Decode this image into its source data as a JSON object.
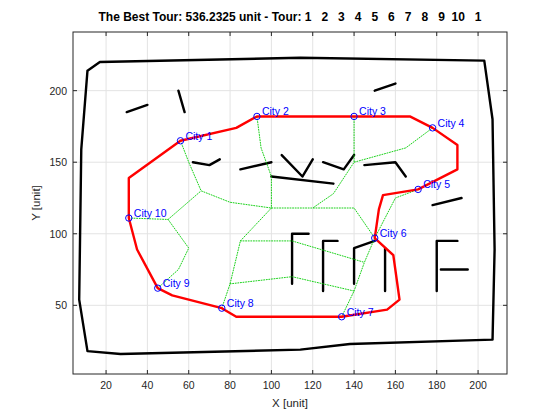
{
  "chart_data": {
    "type": "line",
    "title": "The Best Tour: 536.2325 unit - Tour: 1   2   3   4   5   6   7   8   9  10   1",
    "x_label": "X [unit]",
    "y_label": "Y [unit]",
    "xlim": [
      4,
      214
    ],
    "ylim": [
      2,
      241
    ],
    "xticks": [
      20,
      40,
      60,
      80,
      100,
      120,
      140,
      160,
      180,
      200
    ],
    "yticks": [
      50,
      100,
      150,
      200
    ],
    "grid": true,
    "series": [
      {
        "type": "line",
        "color": "#000000",
        "line_style": "solid",
        "x": [
          11,
          17,
          114,
          203,
          207,
          208,
          207,
          138,
          114,
          27,
          11,
          7,
          8,
          11,
          null,
          62,
          70,
          75,
          null,
          85,
          100,
          null,
          105,
          115,
          120,
          null,
          125,
          135,
          140,
          null,
          145,
          160,
          165,
          null,
          100,
          130,
          null,
          110,
          110,
          118,
          null,
          125,
          125,
          132,
          null,
          140,
          140,
          150,
          null,
          155,
          155,
          null,
          180,
          180,
          190,
          null,
          182,
          195,
          null,
          178,
          192,
          null,
          30,
          40,
          null,
          55,
          58,
          null,
          150,
          160
        ],
        "values": [
          214,
          220,
          223,
          221,
          180,
          89,
          26,
          23,
          19,
          16,
          18,
          54,
          159,
          214,
          null,
          150,
          148,
          152,
          null,
          145,
          150,
          null,
          155,
          140,
          152,
          null,
          150,
          145,
          155,
          null,
          148,
          150,
          140,
          null,
          140,
          135,
          null,
          65,
          100,
          100,
          null,
          60,
          95,
          95,
          null,
          65,
          90,
          95,
          null,
          60,
          90,
          null,
          60,
          95,
          95,
          null,
          75,
          75,
          null,
          120,
          125,
          null,
          185,
          190,
          null,
          200,
          185,
          null,
          200,
          205
        ]
      },
      {
        "type": "line",
        "color": "#00cc00",
        "line_style": "dotted",
        "x": [
          56,
          60,
          66,
          80,
          100,
          120,
          140,
          150,
          null,
          93,
          95,
          100,
          100,
          null,
          140,
          140,
          130,
          120,
          null,
          31,
          50,
          66,
          null,
          45,
          55,
          60,
          50,
          null,
          76,
          80,
          85,
          100,
          null,
          134,
          140,
          145,
          150,
          null,
          80,
          110,
          140,
          null,
          85,
          110,
          145,
          null,
          178,
          165,
          140,
          null,
          171,
          160,
          150
        ],
        "values": [
          165,
          150,
          130,
          122,
          118,
          118,
          118,
          97,
          null,
          182,
          160,
          140,
          118,
          null,
          182,
          150,
          128,
          118,
          null,
          111,
          110,
          130,
          null,
          62,
          75,
          90,
          110,
          null,
          48,
          65,
          95,
          118,
          null,
          42,
          60,
          80,
          97,
          null,
          65,
          70,
          60,
          null,
          95,
          95,
          80,
          null,
          174,
          160,
          150,
          null,
          131,
          125,
          97
        ]
      },
      {
        "type": "line",
        "color": "#ff0000",
        "line_style": "solid",
        "x": [
          56,
          83,
          93,
          167,
          178,
          190,
          190,
          171,
          154,
          152,
          150,
          159,
          162,
          156,
          134,
          83,
          76,
          52,
          45,
          35,
          31,
          31,
          56
        ],
        "values": [
          165,
          174,
          182,
          182,
          174,
          162,
          145,
          131,
          127,
          117,
          97,
          85,
          54,
          47,
          42,
          42,
          48,
          57,
          62,
          89,
          111,
          139,
          165
        ]
      },
      {
        "type": "scatter",
        "color": "#0000ff",
        "marker": "circle",
        "labels": [
          "City 1",
          "City 2",
          "City 3",
          "City 4",
          "City 5",
          "City 6",
          "City 7",
          "City 8",
          "City 9",
          "City 10"
        ],
        "x": [
          56,
          93,
          140,
          178,
          171,
          150,
          134,
          76,
          45,
          31
        ],
        "values": [
          165,
          182,
          182,
          174,
          131,
          97,
          42,
          48,
          62,
          111
        ]
      }
    ]
  }
}
